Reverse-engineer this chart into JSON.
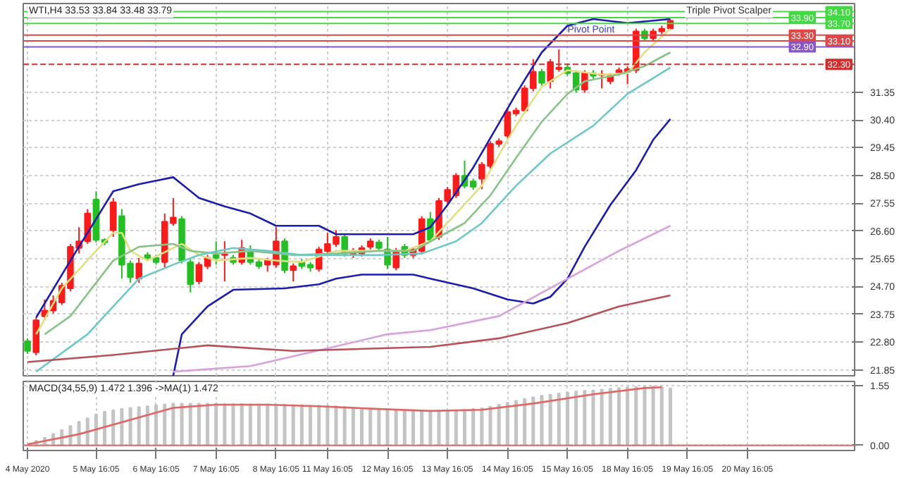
{
  "chart_data": [
    {
      "type": "candlestick",
      "title": "WTI,H4 33.53 33.84 33.48 33.79",
      "categories": [
        "4 May 2020",
        null,
        null,
        null,
        null,
        null,
        null,
        null,
        "5 May 16:05",
        null,
        null,
        null,
        null,
        null,
        null,
        "6 May 16:05",
        null,
        null,
        null,
        null,
        null,
        null,
        "7 May 16:05",
        null,
        null,
        null,
        null,
        null,
        null,
        "8 May 16:05",
        null,
        null,
        null,
        null,
        null,
        "11 May 16:05",
        null,
        null,
        null,
        null,
        null,
        null,
        "12 May 16:05",
        null,
        null,
        null,
        null,
        null,
        null,
        "13 May 16:05",
        null,
        null,
        null,
        null,
        null,
        null,
        "14 May 16:05",
        null,
        null,
        null,
        null,
        null,
        null,
        "15 May 16:05",
        null,
        null,
        null,
        null,
        null,
        null,
        "18 May 16:05",
        null,
        null,
        null,
        null,
        null,
        null,
        "19 May 16:05",
        null,
        null,
        null,
        null,
        null,
        null,
        "20 May 16:05",
        null,
        null,
        null,
        null,
        null,
        null,
        null,
        null,
        null,
        null,
        null,
        null
      ],
      "ohlc": [
        [
          22.83,
          22.93,
          22.4,
          22.5
        ],
        [
          22.45,
          23.64,
          22.35,
          23.55
        ],
        [
          23.69,
          24.26,
          23.55,
          23.88
        ],
        [
          23.88,
          24.4,
          23.78,
          24.21
        ],
        [
          24.16,
          24.83,
          24.07,
          24.73
        ],
        [
          24.64,
          26.16,
          24.54,
          26.06
        ],
        [
          26.02,
          26.73,
          25.83,
          26.25
        ],
        [
          26.25,
          27.35,
          26.16,
          27.2
        ],
        [
          27.68,
          27.96,
          26.21,
          26.3
        ],
        [
          26.3,
          26.35,
          26.11,
          26.21
        ],
        [
          26.63,
          27.73,
          26.4,
          27.58
        ],
        [
          27.11,
          27.35,
          24.97,
          25.45
        ],
        [
          25.49,
          25.59,
          24.83,
          25.02
        ],
        [
          24.97,
          25.68,
          24.83,
          25.49
        ],
        [
          25.78,
          25.88,
          25.59,
          25.68
        ],
        [
          25.68,
          25.78,
          25.45,
          25.54
        ],
        [
          25.54,
          27.2,
          25.35,
          26.92
        ],
        [
          26.87,
          27.73,
          26.78,
          27.06
        ],
        [
          27.01,
          27.11,
          25.49,
          25.59
        ],
        [
          25.54,
          25.64,
          24.5,
          24.78
        ],
        [
          24.88,
          25.54,
          24.78,
          25.45
        ],
        [
          25.4,
          25.78,
          25.3,
          25.68
        ],
        [
          25.78,
          26.25,
          25.45,
          25.68
        ],
        [
          25.78,
          26.25,
          24.88,
          25.8
        ],
        [
          25.68,
          25.78,
          25.45,
          25.54
        ],
        [
          25.54,
          26.3,
          25.45,
          26.02
        ],
        [
          25.92,
          26.11,
          25.45,
          25.54
        ],
        [
          25.54,
          25.64,
          25.3,
          25.4
        ],
        [
          25.45,
          25.68,
          25.21,
          25.59
        ],
        [
          25.45,
          26.73,
          25.35,
          26.25
        ],
        [
          26.25,
          26.35,
          25.16,
          25.26
        ],
        [
          25.26,
          25.49,
          24.88,
          25.4
        ],
        [
          25.54,
          25.64,
          25.3,
          25.4
        ],
        [
          25.45,
          25.54,
          25.21,
          25.35
        ],
        [
          25.3,
          26.06,
          25.21,
          25.97
        ],
        [
          25.92,
          26.54,
          25.83,
          26.16
        ],
        [
          26.16,
          26.63,
          26.06,
          26.4
        ],
        [
          26.4,
          26.49,
          25.73,
          25.83
        ],
        [
          25.78,
          26.02,
          25.68,
          25.92
        ],
        [
          25.83,
          26.11,
          25.73,
          26.02
        ],
        [
          26.06,
          26.35,
          25.97,
          26.25
        ],
        [
          26.21,
          26.3,
          25.92,
          26.02
        ],
        [
          25.97,
          26.4,
          25.3,
          25.45
        ],
        [
          25.35,
          26.02,
          25.26,
          25.92
        ],
        [
          26.06,
          26.16,
          25.68,
          25.78
        ],
        [
          25.78,
          26.06,
          25.68,
          25.97
        ],
        [
          25.92,
          27.11,
          25.83,
          27.01
        ],
        [
          27.01,
          27.25,
          26.21,
          26.3
        ],
        [
          26.4,
          27.73,
          26.3,
          27.63
        ],
        [
          27.63,
          28.11,
          27.54,
          28.01
        ],
        [
          27.82,
          28.58,
          27.73,
          28.49
        ],
        [
          28.49,
          29.01,
          28.06,
          28.15
        ],
        [
          28.3,
          28.39,
          28.01,
          28.11
        ],
        [
          28.39,
          28.96,
          28.03,
          28.87
        ],
        [
          28.82,
          29.67,
          28.73,
          29.58
        ],
        [
          29.58,
          29.77,
          29.48,
          29.67
        ],
        [
          29.86,
          30.77,
          29.77,
          30.67
        ],
        [
          30.62,
          30.82,
          30.53,
          30.72
        ],
        [
          30.72,
          31.58,
          30.62,
          31.48
        ],
        [
          31.48,
          32.48,
          31.38,
          32.05
        ],
        [
          32.05,
          32.14,
          31.58,
          31.67
        ],
        [
          31.72,
          32.48,
          31.48,
          32.38
        ],
        [
          32.14,
          32.81,
          32.05,
          32.19
        ],
        [
          32.19,
          32.29,
          31.91,
          32.0
        ],
        [
          32.0,
          32.1,
          31.33,
          31.43
        ],
        [
          31.43,
          32.1,
          31.33,
          32.0
        ],
        [
          32.0,
          32.1,
          31.81,
          31.91
        ],
        [
          31.93,
          32.1,
          31.48,
          31.95
        ],
        [
          31.72,
          32.0,
          31.62,
          31.91
        ],
        [
          32.0,
          32.19,
          31.91,
          32.1
        ],
        [
          32.05,
          32.24,
          31.62,
          32.14
        ],
        [
          32.1,
          33.52,
          32.0,
          33.43
        ],
        [
          33.43,
          33.52,
          33.1,
          33.19
        ],
        [
          33.19,
          33.52,
          33.1,
          33.43
        ],
        [
          33.43,
          33.62,
          33.33,
          33.52
        ],
        [
          33.53,
          33.84,
          33.48,
          33.79
        ],
        null,
        null,
        null,
        null,
        null,
        null,
        null,
        null,
        null,
        null,
        null,
        null,
        null,
        null,
        null,
        null,
        null,
        null,
        null,
        null,
        null
      ],
      "colors": [
        "#22c022",
        "#ff1a1a",
        "#ff1a1a",
        "#ff1a1a",
        "#ff1a1a",
        "#ff1a1a",
        "#ff1a1a",
        "#ff1a1a",
        "#22c022",
        "#22c022",
        "#ff1a1a",
        "#22c022",
        "#22c022",
        "#ff1a1a",
        "#22c022",
        "#22c022",
        "#ff1a1a",
        "#ff1a1a",
        "#22c022",
        "#22c022",
        "#ff1a1a",
        "#ff1a1a",
        "#22c022",
        "#ff1a1a",
        "#22c022",
        "#ff1a1a",
        "#22c022",
        "#22c022",
        "#ff1a1a",
        "#ff1a1a",
        "#22c022",
        "#ff1a1a",
        "#22c022",
        "#22c022",
        "#ff1a1a",
        "#ff1a1a",
        "#ff1a1a",
        "#22c022",
        "#ff1a1a",
        "#ff1a1a",
        "#ff1a1a",
        "#22c022",
        "#22c022",
        "#ff1a1a",
        "#22c022",
        "#ff1a1a",
        "#ff1a1a",
        "#22c022",
        "#ff1a1a",
        "#ff1a1a",
        "#ff1a1a",
        "#22c022",
        "#22c022",
        "#ff1a1a",
        "#ff1a1a",
        "#ff1a1a",
        "#ff1a1a",
        "#ff1a1a",
        "#ff1a1a",
        "#ff1a1a",
        "#22c022",
        "#ff1a1a",
        "#ff1a1a",
        "#22c022",
        "#22c022",
        "#ff1a1a",
        "#22c022",
        "#ff1a1a",
        "#ff1a1a",
        "#ff1a1a",
        "#ff1a1a",
        "#ff1a1a",
        "#22c022",
        "#ff1a1a",
        "#ff1a1a",
        "#ff1a1a",
        null,
        null,
        null,
        null,
        null,
        null,
        null,
        null,
        null,
        null,
        null,
        null,
        null,
        null,
        null,
        null,
        null,
        null,
        null,
        null,
        null
      ],
      "series": [
        {
          "type": "line",
          "color": "#1c1cb0",
          "values": [
            null,
            23.64,
            null,
            null,
            null,
            25.59,
            null,
            null,
            27.01,
            null,
            27.96,
            null,
            null,
            28.2,
            null,
            null,
            null,
            28.44,
            null,
            null,
            27.73,
            null,
            null,
            27.44,
            null,
            null,
            27.2,
            null,
            null,
            26.78,
            null,
            null,
            null,
            null,
            26.78,
            null,
            26.49,
            null,
            null,
            null,
            null,
            null,
            null,
            null,
            null,
            26.49,
            null,
            26.73,
            null,
            27.49,
            null,
            null,
            28.77,
            null,
            null,
            null,
            null,
            31.29,
            null,
            null,
            32.71,
            null,
            null,
            33.62,
            null,
            null,
            33.85,
            null,
            null,
            null,
            33.71,
            null,
            null,
            null,
            null,
            33.85,
            null,
            null,
            null,
            null,
            null,
            null,
            null,
            null,
            null,
            null,
            null,
            null,
            null,
            null,
            null,
            null,
            null,
            null,
            null,
            null,
            null
          ]
        },
        {
          "type": "line",
          "color": "#1c1cb0",
          "values": [
            null,
            null,
            null,
            null,
            null,
            null,
            null,
            null,
            null,
            null,
            null,
            null,
            null,
            null,
            null,
            null,
            null,
            21.65,
            23.07,
            null,
            null,
            24.02,
            null,
            null,
            24.59,
            null,
            null,
            null,
            null,
            null,
            24.64,
            null,
            null,
            null,
            24.78,
            null,
            24.97,
            null,
            null,
            25.11,
            null,
            null,
            null,
            null,
            null,
            25.11,
            null,
            24.97,
            null,
            null,
            null,
            null,
            24.64,
            null,
            null,
            null,
            24.26,
            null,
            null,
            24.12,
            null,
            24.35,
            null,
            24.97,
            null,
            26.06,
            null,
            null,
            27.49,
            null,
            null,
            28.68,
            null,
            29.72,
            null,
            30.43,
            null,
            null,
            null,
            null,
            null,
            null,
            null,
            null,
            null,
            null,
            null,
            null,
            null,
            null,
            null,
            null,
            null,
            null,
            null,
            null,
            null
          ]
        },
        {
          "type": "line",
          "color": "#e0e080",
          "values": [
            null,
            23.07,
            null,
            null,
            24.64,
            null,
            null,
            null,
            25.92,
            null,
            26.54,
            26.54,
            25.92,
            null,
            25.59,
            null,
            null,
            26.02,
            26.16,
            null,
            25.78,
            null,
            25.59,
            null,
            null,
            null,
            25.68,
            null,
            null,
            25.59,
            null,
            null,
            25.54,
            null,
            null,
            null,
            25.92,
            null,
            null,
            25.92,
            null,
            null,
            null,
            null,
            25.92,
            null,
            null,
            26.25,
            null,
            null,
            27.2,
            null,
            null,
            28.15,
            null,
            null,
            29.72,
            null,
            30.67,
            null,
            31.53,
            null,
            null,
            32.1,
            null,
            null,
            null,
            31.95,
            null,
            null,
            32.0,
            null,
            32.71,
            null,
            null,
            33.52,
            null,
            null,
            null,
            null,
            null,
            null,
            null,
            null,
            null,
            null,
            null,
            null,
            null,
            null,
            null,
            null,
            null,
            null,
            null,
            null,
            null
          ]
        },
        {
          "type": "line",
          "color": "#88c488",
          "values": [
            null,
            null,
            23.07,
            null,
            null,
            23.69,
            null,
            null,
            24.83,
            null,
            25.59,
            null,
            null,
            26.06,
            null,
            null,
            null,
            26.16,
            null,
            25.92,
            null,
            null,
            25.83,
            null,
            null,
            null,
            25.92,
            null,
            null,
            null,
            null,
            25.78,
            null,
            null,
            null,
            null,
            25.83,
            null,
            null,
            null,
            null,
            25.92,
            null,
            null,
            null,
            25.92,
            null,
            null,
            26.4,
            null,
            null,
            26.87,
            null,
            null,
            27.82,
            null,
            null,
            29.1,
            null,
            null,
            30.34,
            null,
            null,
            31.29,
            null,
            31.72,
            null,
            null,
            null,
            31.95,
            null,
            null,
            32.24,
            null,
            null,
            32.71,
            null,
            null,
            null,
            null,
            null,
            null,
            null,
            null,
            null,
            null,
            null,
            null,
            null,
            null,
            null,
            null,
            null,
            null,
            null,
            null,
            null
          ]
        },
        {
          "type": "line",
          "color": "#6cc8c8",
          "values": [
            null,
            21.79,
            null,
            null,
            null,
            null,
            null,
            23.07,
            null,
            null,
            24.02,
            null,
            null,
            24.97,
            null,
            null,
            null,
            25.45,
            null,
            null,
            25.78,
            null,
            null,
            null,
            26.02,
            null,
            null,
            null,
            25.92,
            null,
            null,
            null,
            25.78,
            null,
            null,
            null,
            25.78,
            null,
            null,
            null,
            null,
            25.78,
            null,
            null,
            null,
            null,
            25.83,
            null,
            null,
            null,
            26.25,
            null,
            null,
            26.87,
            null,
            null,
            null,
            28.15,
            null,
            null,
            null,
            29.25,
            null,
            null,
            null,
            null,
            30.2,
            null,
            null,
            null,
            31.29,
            null,
            null,
            null,
            null,
            32.19,
            null,
            null,
            null,
            null,
            null,
            null,
            null,
            null,
            null,
            null,
            null,
            null,
            null,
            null,
            null,
            null,
            null,
            null,
            null,
            null,
            null
          ]
        },
        {
          "type": "line",
          "color": "#d8a0dc",
          "values": [
            null,
            null,
            null,
            null,
            null,
            null,
            null,
            null,
            null,
            null,
            null,
            null,
            null,
            null,
            null,
            null,
            null,
            21.79,
            null,
            null,
            null,
            null,
            null,
            null,
            null,
            null,
            21.98,
            null,
            null,
            null,
            null,
            null,
            null,
            22.45,
            null,
            null,
            null,
            null,
            null,
            null,
            null,
            null,
            23.07,
            null,
            null,
            null,
            null,
            23.21,
            null,
            null,
            null,
            null,
            null,
            null,
            null,
            23.69,
            null,
            null,
            null,
            null,
            null,
            null,
            null,
            24.97,
            null,
            null,
            null,
            null,
            null,
            25.92,
            null,
            null,
            null,
            null,
            null,
            26.78,
            null,
            null,
            null,
            null,
            null,
            null,
            null,
            null,
            null,
            null,
            null,
            null,
            null,
            null,
            null,
            null,
            null,
            null,
            null,
            null,
            null
          ]
        },
        {
          "type": "line",
          "color": "#b8505a",
          "values": [
            22.12,
            null,
            null,
            null,
            null,
            null,
            null,
            null,
            null,
            null,
            22.36,
            null,
            null,
            null,
            null,
            null,
            null,
            null,
            null,
            null,
            null,
            22.69,
            null,
            null,
            null,
            null,
            null,
            null,
            null,
            null,
            null,
            22.5,
            null,
            null,
            null,
            null,
            null,
            null,
            null,
            null,
            null,
            null,
            null,
            null,
            null,
            null,
            null,
            22.64,
            null,
            null,
            null,
            null,
            null,
            null,
            null,
            22.93,
            null,
            null,
            null,
            null,
            null,
            null,
            null,
            23.45,
            null,
            null,
            null,
            null,
            null,
            24.02,
            null,
            null,
            null,
            null,
            null,
            24.4,
            null,
            null,
            null,
            null,
            null,
            null,
            null,
            null,
            null,
            null,
            null,
            null,
            null,
            null,
            null,
            null,
            null,
            null,
            null,
            null,
            null
          ]
        }
      ],
      "ref_lines": [
        {
          "axis": "y",
          "value": 34.1,
          "label": "34.10",
          "color": "#44d844"
        },
        {
          "axis": "y",
          "value": 33.9,
          "label": "33.90",
          "color": "#44d844"
        },
        {
          "axis": "y",
          "value": 33.7,
          "label": "33.70",
          "color": "#44d844"
        },
        {
          "axis": "y",
          "value": 33.3,
          "label": "33.30",
          "color": "#e04848"
        },
        {
          "axis": "y",
          "value": 33.1,
          "label": "33.10",
          "color": "#e04848"
        },
        {
          "axis": "y",
          "value": 32.9,
          "label": "32.90",
          "color": "#8855cc"
        },
        {
          "axis": "y",
          "value": 32.3,
          "label": "32.30",
          "color": "#d03030",
          "line_style": "dashed"
        }
      ],
      "annotations": [
        "Triple Pivot Scalper",
        {
          "text": "Pivot Point",
          "x": "15 May 16:05",
          "y": 32.9
        }
      ],
      "ylim": [
        21.65,
        34.38
      ],
      "yticks": [
        {
          "value": 21.85,
          "label": "21.85"
        },
        {
          "value": 22.8,
          "label": "22.80"
        },
        {
          "value": 23.75,
          "label": "23.75"
        },
        {
          "value": 24.7,
          "label": "24.70"
        },
        {
          "value": 25.65,
          "label": "25.65"
        },
        {
          "value": 26.6,
          "label": "26.60"
        },
        {
          "value": 27.55,
          "label": "27.55"
        },
        {
          "value": 28.5,
          "label": "28.50"
        },
        {
          "value": 29.45,
          "label": "29.45"
        },
        {
          "value": 30.4,
          "label": "30.40"
        },
        {
          "value": 31.35,
          "label": "31.35"
        }
      ],
      "tick_labels": "y",
      "grid": true
    },
    {
      "type": "bar",
      "title": "MACD(34,55,9) 1.472 1.396 ->MA(1) 1.472",
      "categories": [
        "4 May 2020",
        null,
        null,
        null,
        null,
        null,
        null,
        null,
        "5 May 16:05",
        null,
        null,
        null,
        null,
        null,
        null,
        "6 May 16:05",
        null,
        null,
        null,
        null,
        null,
        null,
        "7 May 16:05",
        null,
        null,
        null,
        null,
        null,
        null,
        "8 May 16:05",
        null,
        null,
        null,
        null,
        null,
        "11 May 16:05",
        null,
        null,
        null,
        null,
        null,
        null,
        "12 May 16:05",
        null,
        null,
        null,
        null,
        null,
        null,
        "13 May 16:05",
        null,
        null,
        null,
        null,
        null,
        null,
        "14 May 16:05",
        null,
        null,
        null,
        null,
        null,
        null,
        "15 May 16:05",
        null,
        null,
        null,
        null,
        null,
        null,
        "18 May 16:05",
        null,
        null,
        null,
        null,
        null,
        null,
        "19 May 16:05",
        null,
        null,
        null,
        null,
        null,
        null,
        "20 May 16:05",
        null,
        null,
        null,
        null,
        null,
        null,
        null,
        null,
        null,
        null,
        null,
        null
      ],
      "series": [
        {
          "color": "#c4c4c4",
          "values": [
            null,
            0.12,
            0.2,
            0.3,
            0.4,
            0.5,
            0.61,
            0.7,
            0.8,
            0.87,
            0.91,
            0.94,
            0.97,
            0.99,
            1.01,
            1.04,
            1.06,
            1.08,
            1.08,
            1.08,
            1.08,
            1.08,
            1.08,
            1.07,
            1.07,
            1.07,
            1.06,
            1.06,
            1.06,
            1.05,
            1.05,
            1.04,
            1.04,
            1.03,
            1.03,
            1.02,
            1.01,
            0.99,
            0.98,
            0.96,
            0.95,
            0.94,
            0.93,
            0.92,
            0.91,
            0.9,
            0.89,
            0.89,
            0.89,
            0.9,
            0.91,
            0.92,
            0.94,
            0.96,
            1.0,
            1.05,
            1.1,
            1.15,
            1.2,
            1.24,
            1.28,
            1.31,
            1.34,
            1.37,
            1.39,
            1.41,
            1.42,
            1.44,
            1.46,
            1.48,
            1.5,
            1.51,
            1.52,
            1.52,
            1.5,
            1.47,
            null,
            null,
            null,
            null,
            null,
            null,
            null,
            null,
            null,
            null,
            null,
            null,
            null,
            null,
            null,
            null,
            null,
            null,
            null,
            null,
            null
          ]
        },
        {
          "type": "line",
          "color": "#e06666",
          "values": [
            0.03,
            null,
            null,
            null,
            null,
            null,
            0.29,
            null,
            null,
            null,
            null,
            null,
            0.66,
            null,
            null,
            null,
            null,
            0.97,
            null,
            null,
            null,
            null,
            1.05,
            null,
            null,
            null,
            null,
            null,
            1.05,
            null,
            null,
            null,
            null,
            null,
            1.01,
            null,
            null,
            null,
            null,
            null,
            null,
            0.94,
            null,
            null,
            null,
            null,
            null,
            0.89,
            null,
            null,
            null,
            null,
            null,
            0.92,
            null,
            null,
            null,
            null,
            null,
            1.08,
            null,
            null,
            null,
            null,
            null,
            null,
            1.32,
            null,
            null,
            null,
            null,
            null,
            1.48,
            null,
            1.5,
            null,
            null,
            null,
            null,
            null,
            null,
            null,
            null,
            null,
            null,
            null,
            null,
            null,
            null,
            null,
            null,
            null,
            null,
            null,
            null,
            null,
            null
          ]
        }
      ],
      "ref_lines": [
        {
          "axis": "y",
          "value": 0,
          "color": "#e06666"
        }
      ],
      "ylim": [
        -0.13,
        1.65
      ],
      "yticks": [
        {
          "value": 1.55,
          "label": "1.55"
        },
        {
          "value": 0,
          "label": "0.00"
        }
      ],
      "grid": true
    }
  ]
}
